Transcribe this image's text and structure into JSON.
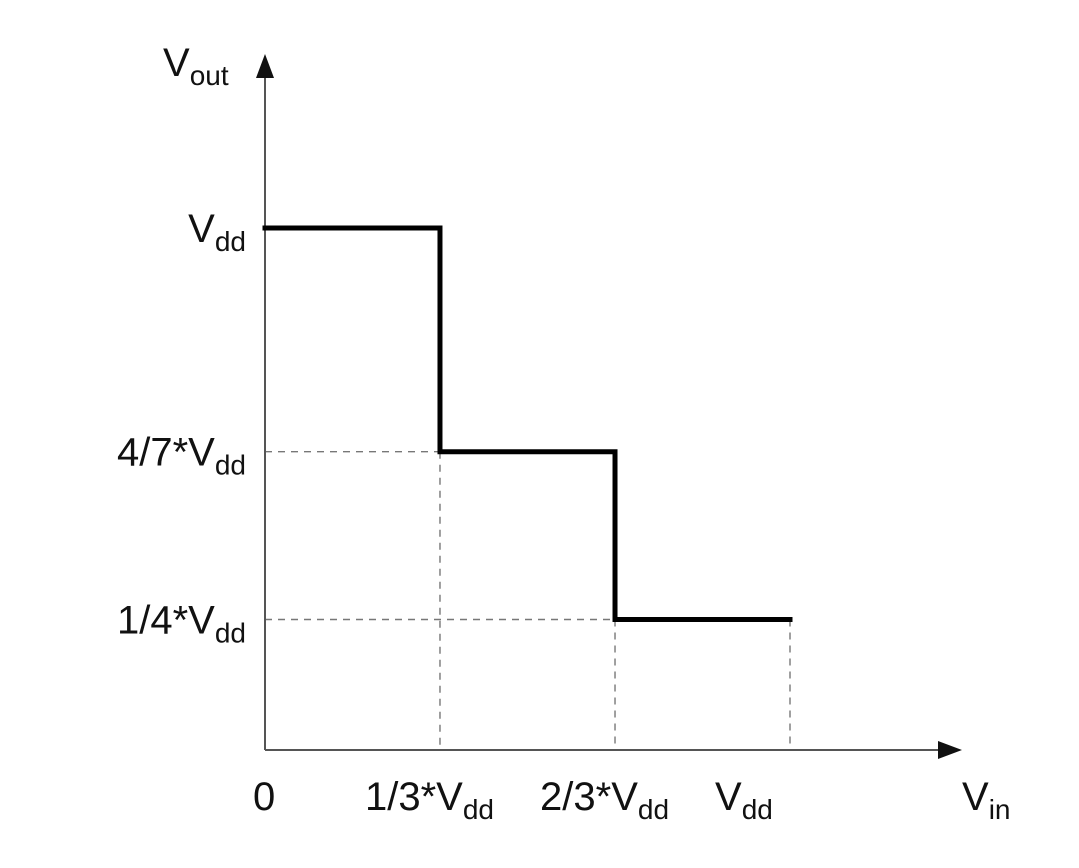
{
  "chart_data": {
    "type": "line",
    "x_axis": {
      "label": {
        "main": "V",
        "sub": "in"
      },
      "ticks": [
        {
          "value": 0,
          "main": "0",
          "sub": ""
        },
        {
          "value": 0.3333,
          "main": "1/3*V",
          "sub": "dd"
        },
        {
          "value": 0.6667,
          "main": "2/3*V",
          "sub": "dd"
        },
        {
          "value": 1,
          "main": "V",
          "sub": "dd"
        }
      ],
      "range": [
        0,
        1.33
      ]
    },
    "y_axis": {
      "label": {
        "main": "V",
        "sub": "out"
      },
      "ticks": [
        {
          "value": 1,
          "main": "V",
          "sub": "dd"
        },
        {
          "value": 0.5714,
          "main": "4/7*V",
          "sub": "dd"
        },
        {
          "value": 0.25,
          "main": "1/4*V",
          "sub": "dd"
        }
      ],
      "range": [
        0,
        1.33
      ]
    },
    "series": [
      {
        "shape": "step",
        "color": "#000000",
        "points": [
          {
            "x": 0,
            "y": 1
          },
          {
            "x": 0.3333,
            "y": 1
          },
          {
            "x": 0.3333,
            "y": 0.5714
          },
          {
            "x": 0.6667,
            "y": 0.5714
          },
          {
            "x": 0.6667,
            "y": 0.25
          },
          {
            "x": 1,
            "y": 0.25
          }
        ]
      }
    ],
    "guides": "dashed gray lines from each step level to the y-axis and down to the x-axis",
    "grid": false,
    "legend": "none"
  }
}
